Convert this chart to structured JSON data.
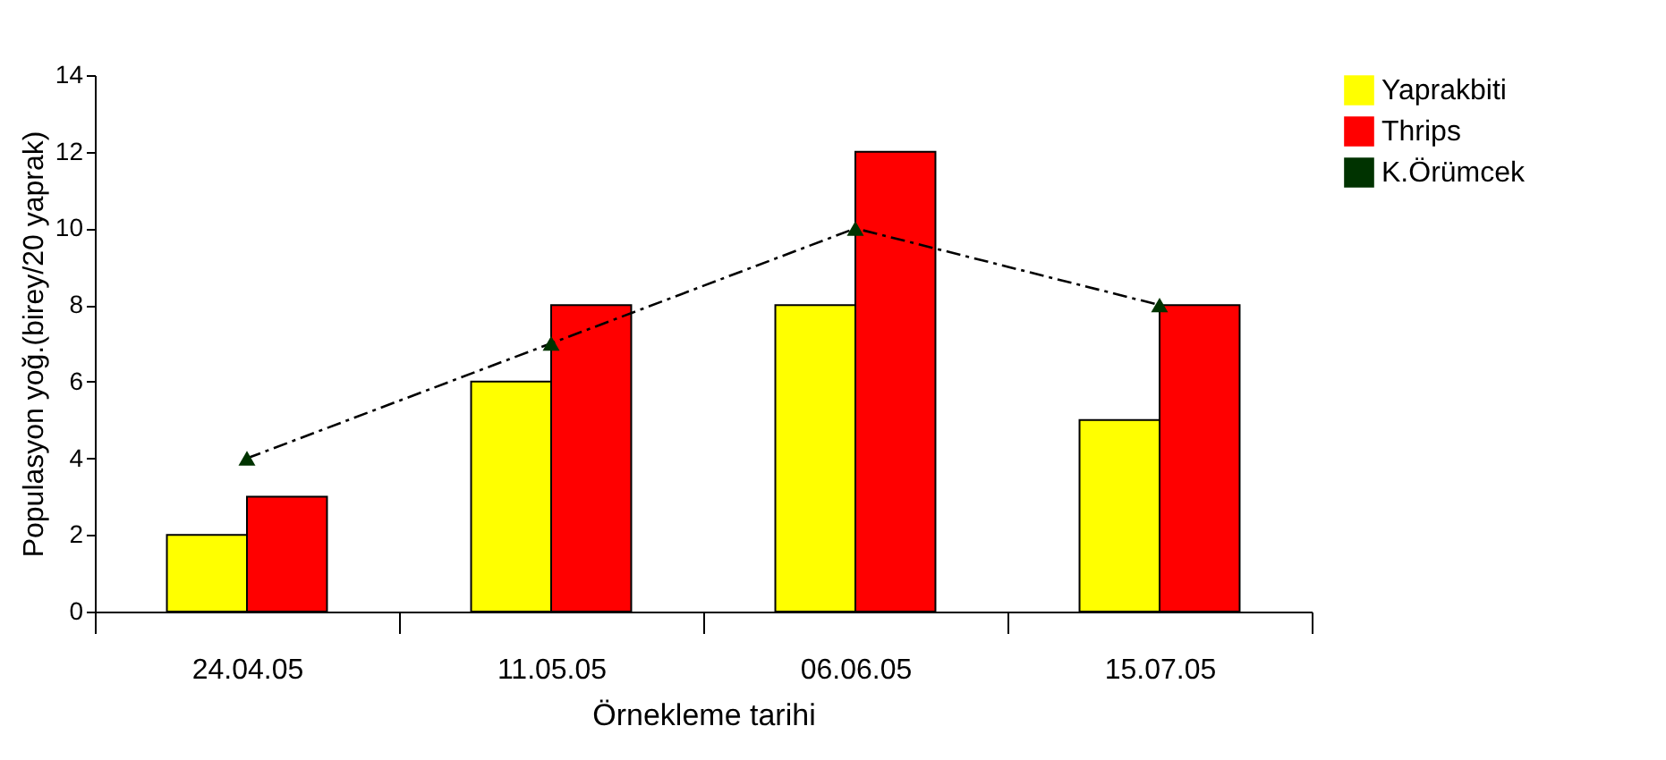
{
  "chart_data": {
    "type": "bar",
    "xlabel": "Örnekleme tarihi",
    "ylabel": "Populasyon yoğ.(birey/20 yaprak)",
    "categories": [
      "24.04.05",
      "11.05.05",
      "06.06.05",
      "15.07.05"
    ],
    "series": [
      {
        "name": "Yaprakbiti",
        "color": "#ffff00",
        "values": [
          2,
          6,
          8,
          5
        ]
      },
      {
        "name": "Thrips",
        "color": "#ff0000",
        "values": [
          3,
          8,
          12,
          8
        ]
      },
      {
        "name": "K.Örümcek",
        "type": "line",
        "color": "#003300",
        "values": [
          4,
          7,
          10,
          8
        ],
        "marker": "triangle",
        "line_style": "dashed"
      }
    ],
    "ylim": [
      0,
      14
    ],
    "yticks": [
      0,
      2,
      4,
      6,
      8,
      10,
      12,
      14
    ],
    "legend": "top right"
  }
}
